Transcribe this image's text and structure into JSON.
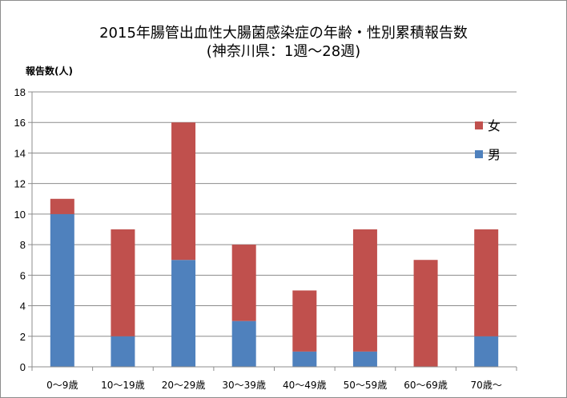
{
  "chart_data": {
    "type": "bar",
    "stacked": true,
    "title": "2015年腸管出血性大腸菌感染症の年齢・性別累積報告数",
    "subtitle": "(神奈川県：1週～28週)",
    "ylabel": "報告数(人)",
    "xlabel": "",
    "ylim": [
      0,
      18
    ],
    "yticks": [
      0,
      2,
      4,
      6,
      8,
      10,
      12,
      14,
      16,
      18
    ],
    "grid": true,
    "legend_position": "right",
    "categories": [
      "0～9歳",
      "10～19歳",
      "20～29歳",
      "30～39歳",
      "40～49歳",
      "50～59歳",
      "60～69歳",
      "70歳～"
    ],
    "series": [
      {
        "name": "男",
        "color": "#4f81bd",
        "values": [
          10,
          2,
          7,
          3,
          1,
          1,
          0,
          2
        ]
      },
      {
        "name": "女",
        "color": "#c0504d",
        "values": [
          1,
          7,
          9,
          5,
          4,
          8,
          7,
          7
        ]
      }
    ],
    "legend_order": [
      "女",
      "男"
    ]
  }
}
